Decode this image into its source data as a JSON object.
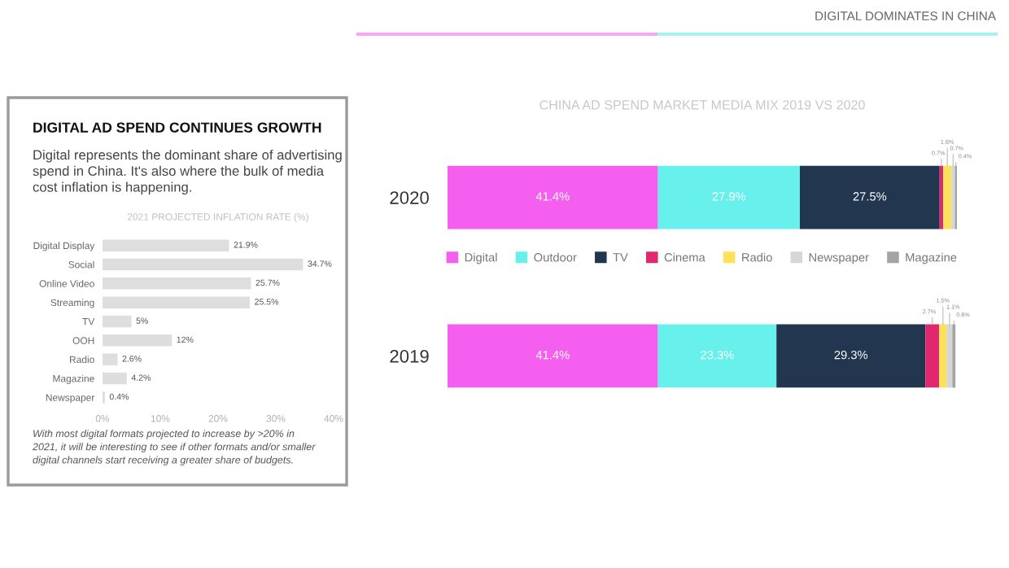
{
  "chart_data": [
    {
      "type": "bar",
      "orientation": "horizontal",
      "title": "2021 PROJECTED INFLATION RATE (%)",
      "categories": [
        "Digital Display",
        "Social",
        "Online Video",
        "Streaming",
        "TV",
        "OOH",
        "Radio",
        "Magazine",
        "Newspaper"
      ],
      "values": [
        21.9,
        34.7,
        25.7,
        25.5,
        5,
        12,
        2.6,
        4.2,
        0.4
      ],
      "value_labels": [
        "21.9%",
        "34.7%",
        "25.7%",
        "25.5%",
        "5%",
        "12%",
        "2.6%",
        "4.2%",
        "0.4%"
      ],
      "color": "#dedede",
      "xlim": [
        0,
        40
      ],
      "xticks": [
        {
          "value": 0,
          "label": "0%"
        },
        {
          "value": 10,
          "label": "10%"
        },
        {
          "value": 20,
          "label": "20%"
        },
        {
          "value": 30,
          "label": "30%"
        },
        {
          "value": 40,
          "label": "40%"
        }
      ],
      "annotations": [
        "DIGITAL AD SPEND CONTINUES GROWTH",
        "Digital represents the dominant share of advertising\nspend in China. It's also where the bulk of media\ncost inflation is happening.",
        "With most digital formats projected to increase by >20% in\n2021, it will be interesting to see if other formats and/or smaller\ndigital channels start receiving a greater share of budgets."
      ]
    },
    {
      "type": "bar",
      "orientation": "horizontal",
      "stacked": true,
      "title": "CHINA AD SPEND MARKET MEDIA MIX 2019 VS 2020",
      "categories": [
        "2020",
        "2019"
      ],
      "legend": "center",
      "series": [
        {
          "name": "Digital",
          "color": "#f45ff0",
          "values": [
            41.4,
            41.4
          ],
          "value_labels": [
            "41.4%",
            "41.4%"
          ]
        },
        {
          "name": "Outdoor",
          "color": "#67f0ec",
          "values": [
            27.9,
            23.3
          ],
          "value_labels": [
            "27.9%",
            "23.3%"
          ]
        },
        {
          "name": "TV",
          "color": "#22364f",
          "values": [
            27.5,
            29.3
          ],
          "value_labels": [
            "27.5%",
            "29.3%"
          ]
        },
        {
          "name": "Cinema",
          "color": "#e0286e",
          "values": [
            0.7,
            2.7
          ],
          "value_labels": [
            "0.7%",
            "2.7%"
          ]
        },
        {
          "name": "Radio",
          "color": "#fde15a",
          "values": [
            1.6,
            1.5
          ],
          "value_labels": [
            "1.6%",
            "1.5%"
          ]
        },
        {
          "name": "Newspaper",
          "color": "#d3d8d4",
          "values": [
            0.7,
            1.1
          ],
          "value_labels": [
            "0.7%",
            "1.1%"
          ]
        },
        {
          "name": "Magazine",
          "color": "#a3a3a3",
          "values": [
            0.4,
            0.6
          ],
          "value_labels": [
            "0.4%",
            "0.6%"
          ]
        }
      ],
      "annotations": [
        "DIGITAL DOMINATES IN CHINA"
      ]
    }
  ]
}
